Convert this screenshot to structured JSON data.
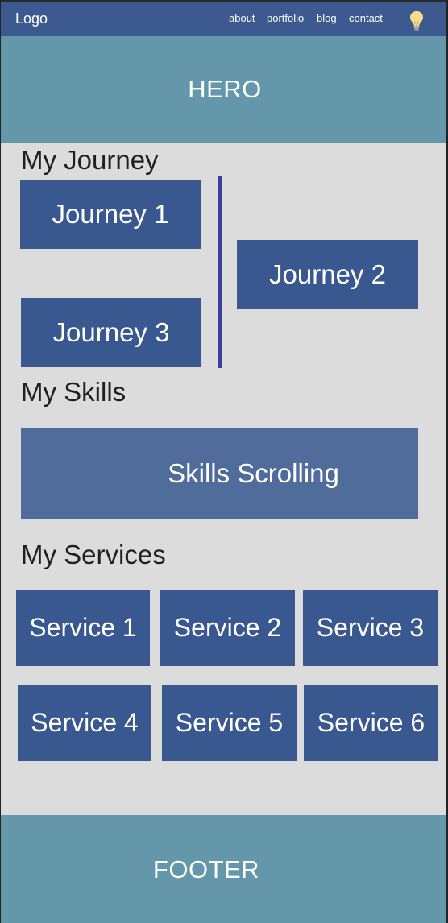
{
  "navbar": {
    "logo": "Logo",
    "links": [
      "about",
      "portfolio",
      "blog",
      "contact"
    ],
    "theme_toggle_icon": "lightbulb-icon"
  },
  "hero": {
    "label": "HERO"
  },
  "journey": {
    "heading": "My Journey",
    "items": [
      "Journey 1",
      "Journey 2",
      "Journey 3"
    ]
  },
  "skills": {
    "heading": "My Skills",
    "label": "Skills Scrolling"
  },
  "services": {
    "heading": "My Services",
    "items": [
      "Service 1",
      "Service 2",
      "Service 3",
      "Service 4",
      "Service 5",
      "Service 6"
    ]
  },
  "footer": {
    "label": "FOOTER"
  },
  "colors": {
    "navbar": "#3c5a8f",
    "hero": "#6597aa",
    "background": "#dcdcdc",
    "box": "#3a5890",
    "skills_box": "#4f6c9b",
    "divider": "#3a3f9a",
    "bulb": "#f6dc8c"
  }
}
